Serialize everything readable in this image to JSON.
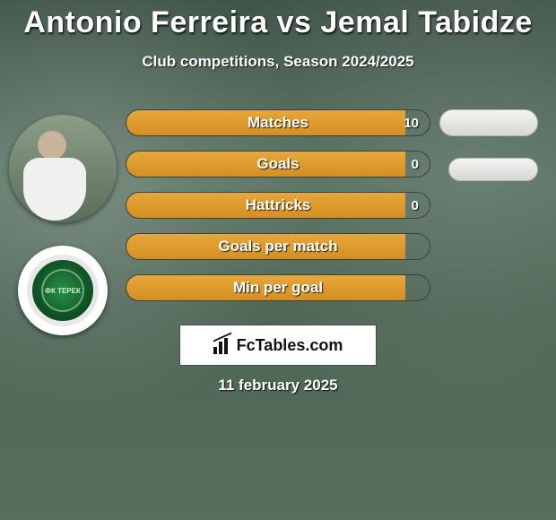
{
  "title": "Antonio Ferreira vs Jemal Tabidze",
  "subtitle": "Club competitions, Season 2024/2025",
  "date": "11 february 2025",
  "logo_text": "FcTables.com",
  "avatars": {
    "player1": {
      "name": "player-avatar-1",
      "bg": "#6a7f6d"
    },
    "player2_badge": {
      "name": "club-badge",
      "outer_bg": "#e8e8e8",
      "inner_bg": "#1e7a3a",
      "text": "ФК ТЕРЕК"
    }
  },
  "bars": {
    "track_width": 340,
    "track_height": 30,
    "border_radius": 15,
    "border_color": "#404040",
    "label_fontsize": 17,
    "label_color": "#ffffff",
    "value_color": "#ffffff",
    "fill_color_primary": "#e7a73a",
    "fill_color_primary_dark": "#d48f22",
    "rows": [
      {
        "label": "Matches",
        "value": "10",
        "fill_fraction": 0.92
      },
      {
        "label": "Goals",
        "value": "0",
        "fill_fraction": 0.92
      },
      {
        "label": "Hattricks",
        "value": "0",
        "fill_fraction": 0.92
      },
      {
        "label": "Goals per match",
        "value": "",
        "fill_fraction": 0.92
      },
      {
        "label": "Min per goal",
        "value": "",
        "fill_fraction": 0.92
      }
    ]
  },
  "pills": {
    "bg_top": "#f4f4f2",
    "bg_bottom": "#d6d6d2",
    "border": "#b8b8b4"
  },
  "background": {
    "base_color": "#4a6050"
  },
  "logo_box": {
    "bg": "#ffffff",
    "border": "#4a4a4a",
    "text_color": "#111111",
    "fontsize": 18
  }
}
